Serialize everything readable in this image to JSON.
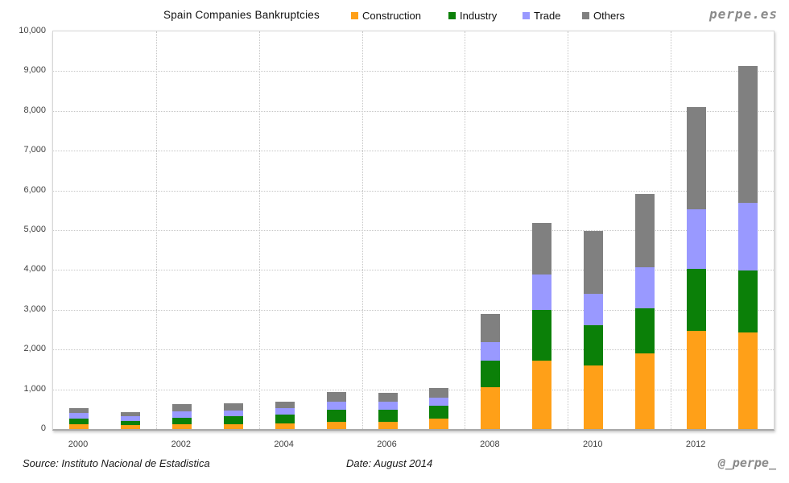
{
  "header": {
    "title": "Spain Companies Bankruptcies"
  },
  "brand": {
    "site": "perpe.es",
    "handle": "@_perpe_"
  },
  "legend": [
    {
      "label": "Construction",
      "color": "#FFA018"
    },
    {
      "label": "Industry",
      "color": "#0B8008"
    },
    {
      "label": "Trade",
      "color": "#9999FF"
    },
    {
      "label": "Others",
      "color": "#808080"
    }
  ],
  "footer": {
    "source": "Source: Instituto Nacional de Estadistica",
    "date": "Date: August 2014"
  },
  "chart_data": {
    "type": "bar",
    "subtype": "stacked",
    "title": "Spain Companies Bankruptcies",
    "categories": [
      "2000",
      "2001",
      "2002",
      "2003",
      "2004",
      "2005",
      "2006",
      "2007",
      "2008",
      "2009",
      "2010",
      "2011",
      "2012",
      "2013"
    ],
    "series": [
      {
        "name": "Construction",
        "color": "#FFA018",
        "values": [
          130,
          95,
          115,
          115,
          150,
          180,
          190,
          270,
          1060,
          1720,
          1590,
          1905,
          2465,
          2430
        ]
      },
      {
        "name": "Industry",
        "color": "#0B8008",
        "values": [
          140,
          105,
          175,
          200,
          215,
          315,
          295,
          320,
          670,
          1280,
          1030,
          1135,
          1560,
          1560
        ]
      },
      {
        "name": "Trade",
        "color": "#9999FF",
        "values": [
          130,
          115,
          160,
          150,
          155,
          195,
          195,
          190,
          450,
          890,
          780,
          1025,
          1510,
          1690
        ]
      },
      {
        "name": "Others",
        "color": "#808080",
        "values": [
          125,
          115,
          180,
          180,
          160,
          235,
          235,
          245,
          710,
          1290,
          1590,
          1845,
          2560,
          3460
        ]
      }
    ],
    "totals": [
      525,
      430,
      630,
      645,
      680,
      925,
      915,
      1025,
      2890,
      5180,
      4990,
      5910,
      8095,
      9140
    ],
    "xlabel": "",
    "ylabel": "",
    "ylim": [
      0,
      10000
    ],
    "y_tick_step": 1000,
    "y_tick_labels": [
      "0",
      "1,000",
      "2,000",
      "3,000",
      "4,000",
      "5,000",
      "6,000",
      "7,000",
      "8,000",
      "9,000",
      "10,000"
    ],
    "x_tick_labels": [
      "2000",
      "2002",
      "2004",
      "2006",
      "2008",
      "2010",
      "2012"
    ],
    "grid": "horizontal dotted every 1000; vertical dotted every 2 categories",
    "legend_position": "top"
  }
}
